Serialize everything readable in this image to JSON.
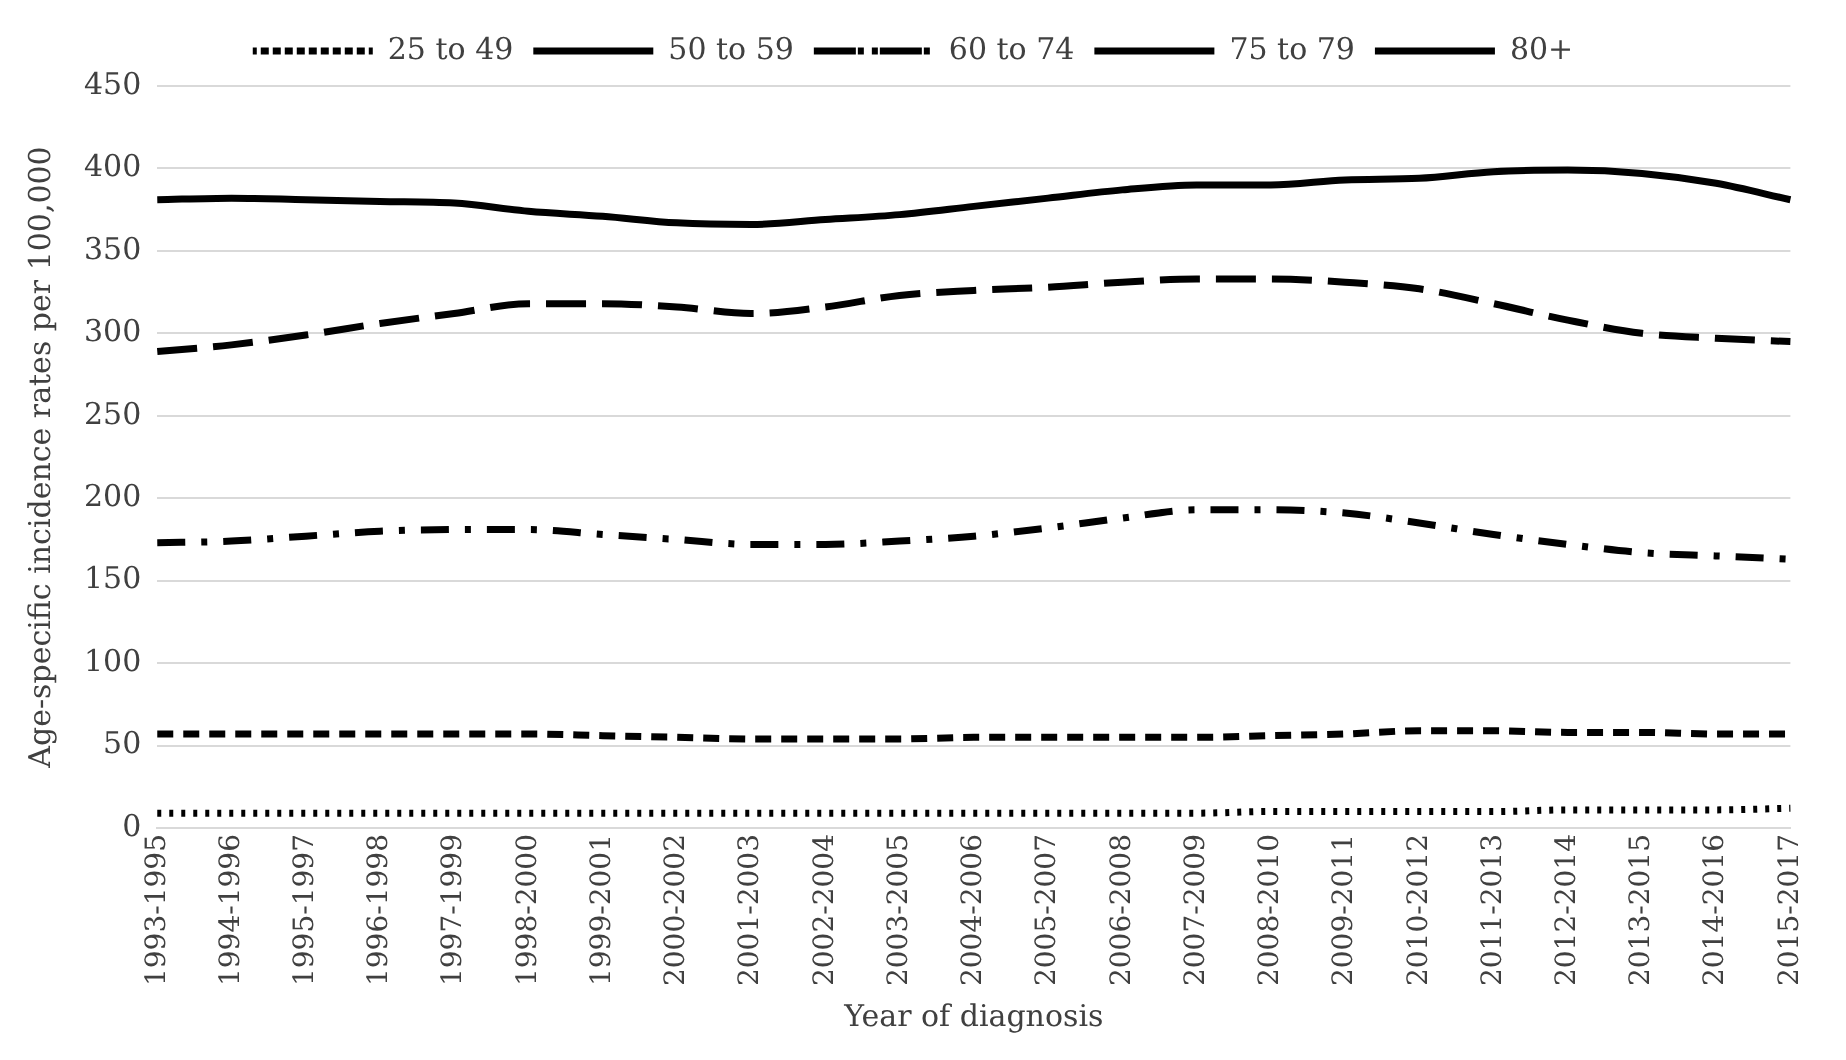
{
  "chart_data": {
    "type": "line",
    "xlabel": "Year of diagnosis",
    "ylabel": "Age-specific incidence rates per 100,000",
    "categories": [
      "1993-1995",
      "1994-1996",
      "1995-1997",
      "1996-1998",
      "1997-1999",
      "1998-2000",
      "1999-2001",
      "2000-2002",
      "2001-2003",
      "2002-2004",
      "2003-2005",
      "2004-2006",
      "2005-2007",
      "2006-2008",
      "2007-2009",
      "2008-2010",
      "2009-2011",
      "2010-2012",
      "2011-2013",
      "2012-2014",
      "2013-2015",
      "2014-2016",
      "2015-2017"
    ],
    "series": [
      {
        "name": "25 to 49",
        "color": "#000000",
        "line_style": "dotted",
        "values": [
          9,
          9,
          9,
          9,
          9,
          9,
          9,
          9,
          9,
          9,
          9,
          9,
          9,
          9,
          9,
          10,
          10,
          10,
          10,
          11,
          11,
          11,
          12
        ]
      },
      {
        "name": "50 to 59",
        "color": "#000000",
        "line_style": "dashed",
        "values": [
          57,
          57,
          57,
          57,
          57,
          57,
          56,
          55,
          54,
          54,
          54,
          55,
          55,
          55,
          55,
          56,
          57,
          59,
          59,
          58,
          58,
          57,
          57
        ]
      },
      {
        "name": "60 to 74",
        "color": "#000000",
        "line_style": "dashed",
        "values": [
          173,
          174,
          177,
          180,
          181,
          181,
          178,
          175,
          172,
          172,
          174,
          177,
          182,
          188,
          193,
          193,
          191,
          185,
          178,
          172,
          167,
          165,
          163
        ]
      },
      {
        "name": "75 to 79",
        "color": "#000000",
        "line_style": "dashed",
        "values": [
          289,
          293,
          299,
          306,
          312,
          318,
          318,
          316,
          312,
          316,
          323,
          326,
          328,
          331,
          333,
          333,
          331,
          327,
          318,
          308,
          300,
          297,
          295
        ]
      },
      {
        "name": "80+",
        "color": "#000000",
        "line_style": "solid",
        "values": [
          381,
          382,
          381,
          380,
          379,
          374,
          371,
          367,
          366,
          369,
          372,
          377,
          382,
          387,
          390,
          390,
          393,
          394,
          398,
          399,
          397,
          391,
          381
        ]
      }
    ],
    "ylim": [
      0,
      450
    ],
    "yticks": [
      0,
      50,
      100,
      150,
      200,
      250,
      300,
      350,
      400,
      450
    ],
    "grid": "y",
    "legend": "top",
    "marker": "none"
  }
}
